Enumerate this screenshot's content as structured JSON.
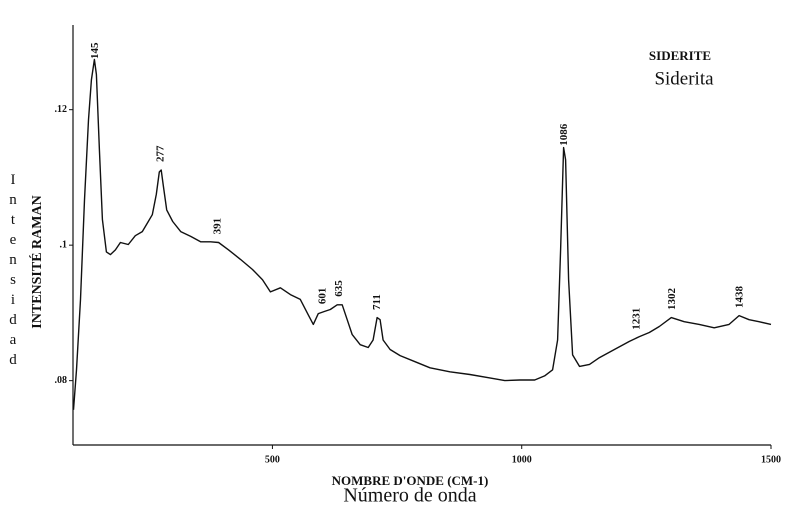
{
  "chart_data": {
    "type": "line",
    "title": "SIDERITE",
    "subtitle": "Siderita",
    "xlabel": "NOMBRE D'ONDE (CM-1)",
    "xlabel_translation": "Número de onda",
    "ylabel": "INTENSITÉ RAMAN",
    "ylabel_translation": "Intensidad",
    "color": "#111111",
    "xlim": [
      100,
      1500
    ],
    "xticks": [
      500,
      1000,
      1500
    ],
    "ylim": [
      0.0705,
      0.1325
    ],
    "yticks": [
      {
        "value": 0.08,
        "label": ".08"
      },
      {
        "value": 0.1,
        "label": ".1"
      },
      {
        "value": 0.12,
        "label": ".12"
      }
    ],
    "peaks": [
      145,
      277,
      391,
      601,
      635,
      711,
      1086,
      1231,
      1302,
      1438
    ],
    "x": [
      101,
      107,
      115,
      123,
      131,
      137,
      143,
      147,
      153,
      159,
      167,
      175,
      185,
      195,
      211,
      225,
      239,
      251,
      259,
      267,
      273,
      277,
      281,
      288,
      300,
      316,
      336,
      356,
      376,
      392,
      412,
      436,
      460,
      480,
      496,
      516,
      536,
      556,
      572,
      582,
      592,
      604,
      616,
      630,
      640,
      650,
      660,
      676,
      692,
      702,
      710,
      716,
      722,
      736,
      756,
      786,
      816,
      856,
      896,
      936,
      966,
      996,
      1026,
      1046,
      1062,
      1072,
      1078,
      1084,
      1088,
      1094,
      1102,
      1116,
      1136,
      1156,
      1186,
      1216,
      1236,
      1256,
      1276,
      1300,
      1326,
      1356,
      1386,
      1416,
      1436,
      1456,
      1476,
      1500
    ],
    "values": [
      0.0757,
      0.0816,
      0.092,
      0.1067,
      0.1185,
      0.1244,
      0.1274,
      0.1252,
      0.1141,
      0.1038,
      0.099,
      0.0986,
      0.0993,
      0.1004,
      0.1001,
      0.1014,
      0.102,
      0.1035,
      0.1045,
      0.1075,
      0.1108,
      0.1111,
      0.1089,
      0.1052,
      0.1035,
      0.102,
      0.1013,
      0.1005,
      0.1005,
      0.1004,
      0.0993,
      0.0979,
      0.0964,
      0.0949,
      0.0931,
      0.0937,
      0.0927,
      0.092,
      0.0897,
      0.0883,
      0.0899,
      0.0902,
      0.0905,
      0.0912,
      0.0912,
      0.089,
      0.0868,
      0.0853,
      0.0849,
      0.086,
      0.0893,
      0.089,
      0.086,
      0.0846,
      0.0837,
      0.0828,
      0.0819,
      0.0813,
      0.0809,
      0.0804,
      0.08,
      0.0801,
      0.0801,
      0.0807,
      0.0816,
      0.086,
      0.0993,
      0.1144,
      0.1126,
      0.0949,
      0.0838,
      0.0821,
      0.0824,
      0.0834,
      0.0846,
      0.0858,
      0.0865,
      0.0871,
      0.088,
      0.0893,
      0.0887,
      0.0883,
      0.0878,
      0.0883,
      0.0896,
      0.089,
      0.0887,
      0.0883
    ]
  }
}
